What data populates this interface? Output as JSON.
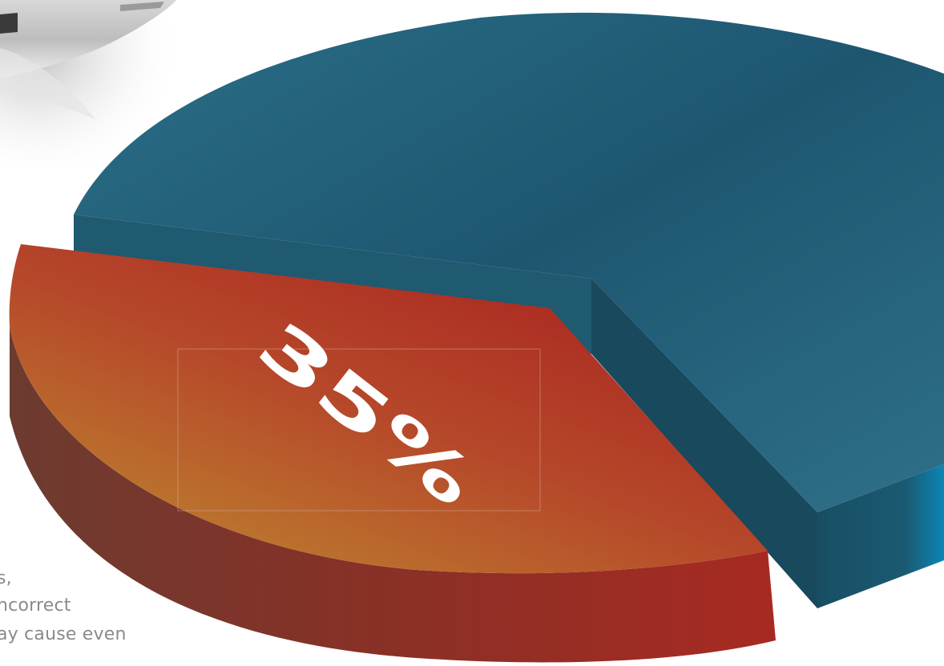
{
  "chart_data": {
    "type": "pie",
    "slices": [
      {
        "label": "35%",
        "value": 35,
        "color": "#a82a23",
        "side_color": "#7c2f26"
      },
      {
        "label": "",
        "value": 65,
        "color": "#26677f",
        "side_color": "#1b4f62"
      }
    ],
    "data_labels": [
      "35%"
    ],
    "title": ""
  },
  "body_text": {
    "line1": "s,",
    "line2": "ncorrect",
    "line3": "ay cause even"
  }
}
